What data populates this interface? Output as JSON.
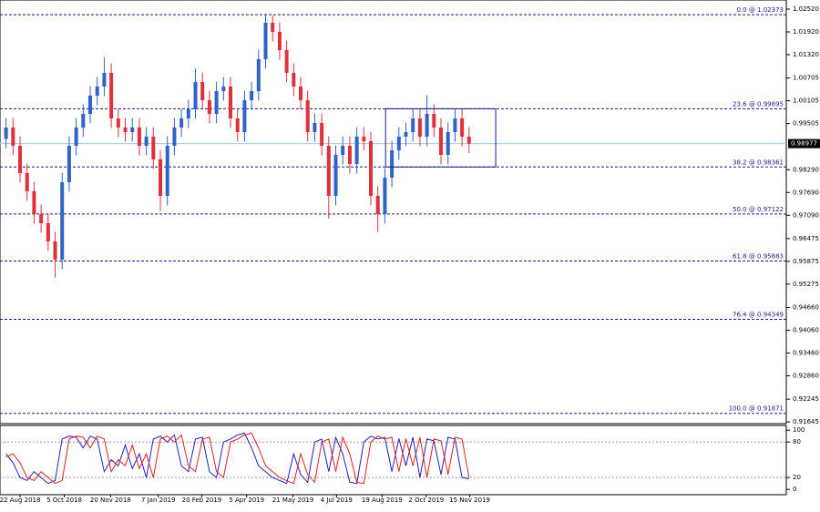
{
  "chart_data": [
    {
      "type": "candlestick",
      "x": [
        -2,
        -1,
        0,
        1,
        2,
        3,
        4,
        5,
        6,
        7,
        8,
        9,
        10,
        11,
        12,
        13,
        14,
        15,
        16,
        17,
        18,
        19,
        20,
        21,
        22,
        23,
        24,
        25,
        26,
        27,
        28,
        29,
        30,
        31,
        32,
        33,
        34,
        35,
        36,
        37,
        38,
        39,
        40,
        41,
        42,
        43,
        44,
        45,
        46,
        47,
        48,
        49,
        50,
        51,
        52,
        53,
        54,
        55,
        56,
        57,
        58,
        59,
        60,
        61,
        62,
        63,
        64
      ],
      "open": [
        0.991,
        0.994,
        0.9892,
        0.982,
        0.9772,
        0.9712,
        0.9688,
        0.964,
        0.9592,
        0.9796,
        0.9892,
        0.994,
        0.9976,
        1.0024,
        1.0048,
        1.0084,
        0.9964,
        0.994,
        0.9928,
        0.994,
        0.9892,
        0.9916,
        0.9856,
        0.976,
        0.9892,
        0.994,
        0.9964,
        0.9988,
        1.006,
        1.0012,
        0.9976,
        1.0036,
        1.0048,
        0.9964,
        0.9928,
        1.0012,
        1.0036,
        1.012,
        1.0216,
        1.0192,
        1.0144,
        1.0084,
        1.0048,
        1.0012,
        0.9928,
        0.9952,
        0.9892,
        0.976,
        0.9868,
        0.9892,
        0.9844,
        0.9916,
        0.9904,
        0.976,
        0.9712,
        0.9808,
        0.988,
        0.9916,
        0.9928,
        0.9964,
        0.9916,
        0.9976,
        0.994,
        0.9868,
        0.9928,
        0.9964,
        0.9916
      ],
      "high": [
        0.9965,
        0.9965,
        0.9917,
        0.9845,
        0.9797,
        0.9737,
        0.9713,
        0.9665,
        0.9821,
        0.9917,
        0.9965,
        1.0001,
        1.0049,
        1.0073,
        1.0125,
        1.0109,
        0.9989,
        0.9965,
        0.9965,
        0.9965,
        0.9941,
        0.9941,
        0.9881,
        0.9917,
        0.9965,
        0.9989,
        1.0013,
        1.0095,
        1.0085,
        1.0037,
        1.0061,
        1.0073,
        1.0073,
        0.9989,
        1.0037,
        1.0061,
        1.0145,
        1.0237,
        1.0235,
        1.0217,
        1.0169,
        1.0109,
        1.0073,
        1.0037,
        0.9977,
        0.9977,
        0.9917,
        0.9893,
        0.9917,
        0.9917,
        0.9941,
        0.9941,
        0.9929,
        0.9785,
        0.9833,
        0.9905,
        0.9941,
        0.9953,
        0.9989,
        0.9989,
        1.0025,
        1.0001,
        0.9965,
        0.9953,
        0.9989,
        0.9989,
        0.9941
      ],
      "low": [
        0.9885,
        0.9867,
        0.9795,
        0.9747,
        0.9687,
        0.9663,
        0.9615,
        0.9545,
        0.9567,
        0.9771,
        0.9867,
        0.9915,
        0.9951,
        0.9999,
        1.0023,
        0.9939,
        0.9915,
        0.9903,
        0.9903,
        0.9867,
        0.9867,
        0.9831,
        0.972,
        0.9735,
        0.9867,
        0.9915,
        0.9939,
        0.9963,
        0.9987,
        0.9951,
        0.9951,
        1.0011,
        0.9939,
        0.9903,
        0.9903,
        0.9987,
        1.0011,
        1.0095,
        1.0167,
        1.0119,
        1.0059,
        1.0023,
        0.9987,
        0.9903,
        0.9903,
        0.9867,
        0.97,
        0.9735,
        0.9843,
        0.9819,
        0.9819,
        0.9879,
        0.9735,
        0.9665,
        0.9687,
        0.9783,
        0.9855,
        0.9891,
        0.9903,
        0.9891,
        0.9891,
        0.9915,
        0.9843,
        0.9843,
        0.9903,
        0.9891,
        0.9873
      ],
      "close": [
        0.994,
        0.9892,
        0.982,
        0.9772,
        0.9712,
        0.9688,
        0.964,
        0.9592,
        0.9796,
        0.9892,
        0.994,
        0.9976,
        1.0024,
        1.0048,
        1.0084,
        0.9964,
        0.994,
        0.9928,
        0.994,
        0.9892,
        0.9916,
        0.9856,
        0.976,
        0.9892,
        0.994,
        0.9964,
        0.9988,
        1.006,
        1.0012,
        0.9976,
        1.0036,
        1.0048,
        0.9964,
        0.9928,
        1.0012,
        1.0036,
        1.012,
        1.0216,
        1.0192,
        1.0144,
        1.0084,
        1.0048,
        1.0012,
        0.9928,
        0.9952,
        0.9892,
        0.976,
        0.9868,
        0.9892,
        0.9844,
        0.9916,
        0.9904,
        0.976,
        0.9712,
        0.9808,
        0.988,
        0.9916,
        0.9928,
        0.9964,
        0.9916,
        0.9976,
        0.994,
        0.9868,
        0.9928,
        0.9964,
        0.9916,
        0.9898
      ],
      "up_color": "#2f63c8",
      "down_color": "#e0303a",
      "xlim": [
        -2.86,
        109.22
      ],
      "ylim": [
        0.916,
        1.0276
      ],
      "yticks": [
        {
          "value": 1.0252,
          "label": "1.02520"
        },
        {
          "value": 1.0192,
          "label": "1.01920"
        },
        {
          "value": 1.0132,
          "label": "1.01320"
        },
        {
          "value": 1.00705,
          "label": "1.00705"
        },
        {
          "value": 1.00105,
          "label": "1.00105"
        },
        {
          "value": 0.99505,
          "label": "0.99505"
        },
        {
          "value": 0.9829,
          "label": "0.98290"
        },
        {
          "value": 0.9769,
          "label": "0.97690"
        },
        {
          "value": 0.9709,
          "label": "0.97090"
        },
        {
          "value": 0.96475,
          "label": "0.96475"
        },
        {
          "value": 0.95875,
          "label": "0.95875"
        },
        {
          "value": 0.95275,
          "label": "0.95275"
        },
        {
          "value": 0.9466,
          "label": "0.94660"
        },
        {
          "value": 0.9406,
          "label": "0.94060"
        },
        {
          "value": 0.9346,
          "label": "0.93460"
        },
        {
          "value": 0.9286,
          "label": "0.92860"
        },
        {
          "value": 0.92245,
          "label": "0.92245"
        },
        {
          "value": 0.91645,
          "label": "0.91645"
        }
      ],
      "fib_levels": [
        {
          "value": 1.02373,
          "label": "0.0 @ 1.02373"
        },
        {
          "value": 0.99895,
          "label": "23.6 @ 0.99895"
        },
        {
          "value": 0.98361,
          "label": "38.2 @ 0.98361"
        },
        {
          "value": 0.97122,
          "label": "50.0 @ 0.97122"
        },
        {
          "value": 0.95883,
          "label": "61.8 @ 0.95883"
        },
        {
          "value": 0.94349,
          "label": "76.4 @ 0.94349"
        },
        {
          "value": 0.91871,
          "label": "100.0 @ 0.91871"
        }
      ],
      "fib_color": "#1a1a8c",
      "rectangle": {
        "x": [
          52.1,
          67.8
        ],
        "y": [
          0.99895,
          0.98361
        ]
      },
      "last_price": {
        "value": 0.98977,
        "label": "0.98977"
      }
    },
    {
      "type": "line",
      "x": [
        -2,
        -1,
        0,
        1,
        2,
        3,
        4,
        5,
        6,
        7,
        8,
        9,
        10,
        11,
        12,
        13,
        14,
        15,
        16,
        17,
        18,
        19,
        20,
        21,
        22,
        23,
        24,
        25,
        26,
        27,
        28,
        29,
        30,
        31,
        32,
        33,
        34,
        35,
        36,
        37,
        38,
        39,
        40,
        41,
        42,
        43,
        44,
        45,
        46,
        47,
        48,
        49,
        50,
        51,
        52,
        53,
        54,
        55,
        56,
        57,
        58,
        59,
        60,
        61,
        62,
        63,
        64
      ],
      "series": [
        {
          "color": "#2020c0",
          "values": [
            60,
            45,
            20,
            15,
            30,
            20,
            10,
            15,
            85,
            90,
            88,
            70,
            90,
            85,
            30,
            50,
            40,
            75,
            35,
            60,
            20,
            85,
            90,
            80,
            92,
            40,
            30,
            85,
            88,
            30,
            20,
            80,
            85,
            92,
            95,
            70,
            40,
            30,
            20,
            15,
            10,
            60,
            25,
            12,
            80,
            85,
            30,
            88,
            60,
            12,
            10,
            80,
            90,
            85,
            88,
            30,
            86,
            40,
            88,
            20,
            85,
            82,
            25,
            88,
            85,
            20,
            18
          ]
        },
        {
          "color": "#e02020",
          "values": [
            55,
            60,
            45,
            20,
            15,
            30,
            20,
            10,
            15,
            85,
            90,
            88,
            70,
            90,
            85,
            30,
            50,
            40,
            75,
            35,
            60,
            20,
            85,
            90,
            80,
            92,
            40,
            30,
            85,
            88,
            30,
            20,
            80,
            85,
            92,
            95,
            70,
            40,
            30,
            20,
            15,
            10,
            60,
            25,
            12,
            80,
            85,
            30,
            88,
            60,
            12,
            10,
            80,
            90,
            85,
            88,
            30,
            86,
            40,
            88,
            20,
            85,
            82,
            25,
            88,
            85,
            20
          ]
        }
      ],
      "xlim": [
        -2.86,
        109.22
      ],
      "ylim": [
        -9,
        108
      ],
      "yticks": [
        100,
        80,
        20,
        0
      ],
      "levels": [
        80,
        20
      ],
      "xticks": [
        {
          "value": 0,
          "label": "22 Aug 2018"
        },
        {
          "value": 6.3,
          "label": "5 Oct 2018"
        },
        {
          "value": 12.9,
          "label": "20 Nov 2018"
        },
        {
          "value": 19.7,
          "label": "7 Jan 2019"
        },
        {
          "value": 25.9,
          "label": "20 Feb 2019"
        },
        {
          "value": 32.3,
          "label": "5 Apr 2019"
        },
        {
          "value": 38.9,
          "label": "21 May 2019"
        },
        {
          "value": 45.1,
          "label": "4 Jul 2019"
        },
        {
          "value": 51.6,
          "label": "19 Aug 2019"
        },
        {
          "value": 57.9,
          "label": "2 Oct 2019"
        },
        {
          "value": 64.1,
          "label": "15 Nov 2019"
        }
      ]
    }
  ]
}
